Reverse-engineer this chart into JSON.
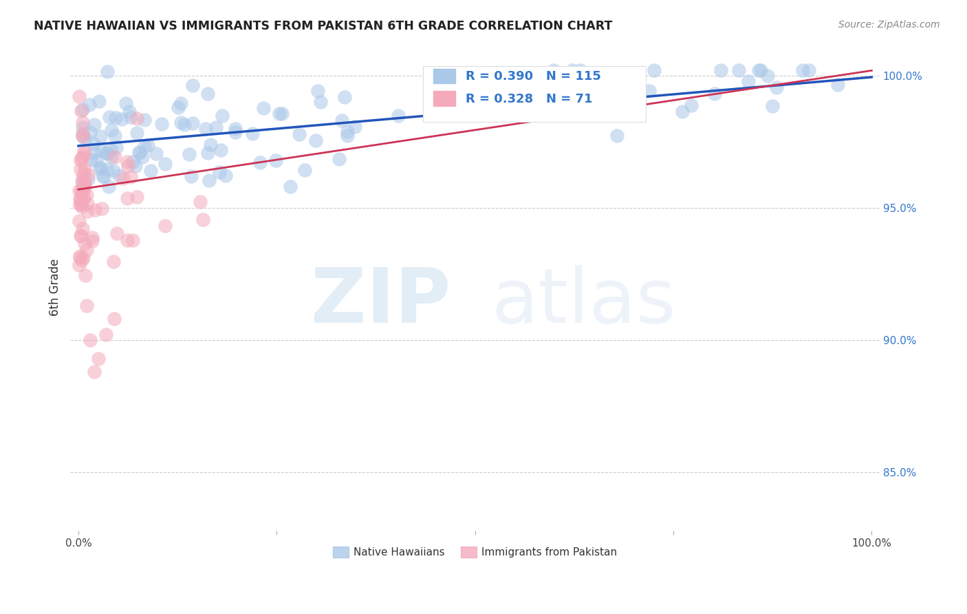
{
  "title": "NATIVE HAWAIIAN VS IMMIGRANTS FROM PAKISTAN 6TH GRADE CORRELATION CHART",
  "source": "Source: ZipAtlas.com",
  "ylabel": "6th Grade",
  "xlim": [
    -0.01,
    1.01
  ],
  "ylim": [
    0.828,
    1.012
  ],
  "yticks": [
    0.85,
    0.9,
    0.95,
    1.0
  ],
  "ytick_labels": [
    "85.0%",
    "90.0%",
    "95.0%",
    "100.0%"
  ],
  "xticks": [
    0.0,
    0.25,
    0.5,
    0.75,
    1.0
  ],
  "xtick_labels_show": [
    "0.0%",
    "",
    "",
    "",
    "100.0%"
  ],
  "blue_R": 0.39,
  "blue_N": 115,
  "pink_R": 0.328,
  "pink_N": 71,
  "blue_scatter_color": "#aac8e8",
  "blue_line_color": "#2255bb",
  "pink_scatter_color": "#f4aabb",
  "pink_line_color": "#cc3355",
  "legend_label_blue": "Native Hawaiians",
  "legend_label_pink": "Immigrants from Pakistan",
  "background_color": "#ffffff",
  "grid_color": "#cccccc",
  "title_color": "#222222",
  "right_tick_color": "#3377cc",
  "blue_line_x": [
    0.0,
    1.0
  ],
  "blue_line_y": [
    0.9735,
    0.9995
  ],
  "pink_line_x": [
    0.0,
    1.0
  ],
  "pink_line_y": [
    0.957,
    1.002
  ],
  "watermark_zip_color": "#c8dff0",
  "watermark_atlas_color": "#c8dff0"
}
